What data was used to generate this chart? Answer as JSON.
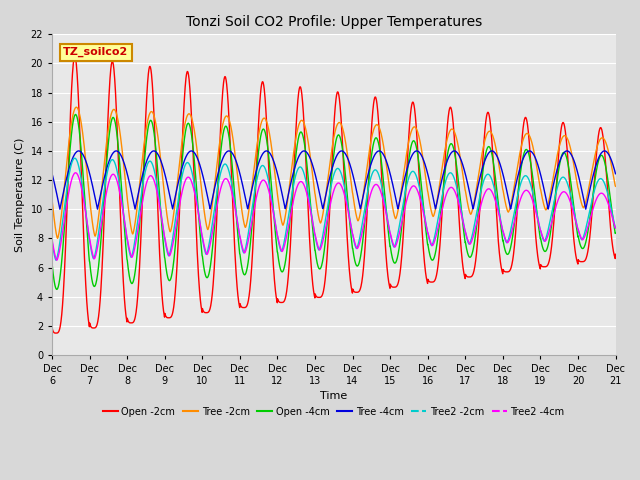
{
  "title": "Tonzi Soil CO2 Profile: Upper Temperatures",
  "xlabel": "Time",
  "ylabel": "Soil Temperature (C)",
  "ylim": [
    0,
    22
  ],
  "yticks": [
    0,
    2,
    4,
    6,
    8,
    10,
    12,
    14,
    16,
    18,
    20,
    22
  ],
  "num_days": 15,
  "xtick_labels": [
    "Dec 6",
    "Dec 7",
    "Dec 8",
    "Dec 9",
    "Dec 10",
    "Dec 11",
    "Dec 12",
    "Dec 13",
    "Dec 14",
    "Dec 15",
    "Dec 16",
    "Dec 17",
    "Dec 18",
    "Dec 19",
    "Dec 20",
    "Dec 21"
  ],
  "series": [
    {
      "label": "Open -2cm",
      "color": "#FF0000",
      "mid": 11.0,
      "amp": 9.5,
      "amp_decay_per_day": 0.35,
      "mid_decay_per_day": 0.0,
      "peak_hour": 14.5,
      "sharpness": 3.5
    },
    {
      "label": "Tree -2cm",
      "color": "#FF8C00",
      "mid": 12.5,
      "amp": 4.5,
      "amp_decay_per_day": 0.15,
      "mid_decay_per_day": 0.0,
      "peak_hour": 15.5,
      "sharpness": 1.5
    },
    {
      "label": "Open -4cm",
      "color": "#00CC00",
      "mid": 10.5,
      "amp": 6.0,
      "amp_decay_per_day": 0.2,
      "mid_decay_per_day": 0.0,
      "peak_hour": 15.0,
      "sharpness": 2.0
    },
    {
      "label": "Tree -4cm",
      "color": "#0000DD",
      "mid": 12.0,
      "amp": 2.0,
      "amp_decay_per_day": 0.0,
      "mid_decay_per_day": 0.0,
      "peak_hour": 17.0,
      "sharpness": 1.0
    },
    {
      "label": "Tree2 -2cm",
      "color": "#00CCCC",
      "mid": 10.0,
      "amp": 3.5,
      "amp_decay_per_day": 0.1,
      "mid_decay_per_day": 0.0,
      "peak_hour": 14.5,
      "sharpness": 1.5
    },
    {
      "label": "Tree2 -4cm",
      "color": "#FF00FF",
      "mid": 9.5,
      "amp": 3.0,
      "amp_decay_per_day": 0.1,
      "mid_decay_per_day": 0.0,
      "peak_hour": 15.0,
      "sharpness": 1.5
    }
  ],
  "bg_color": "#D8D8D8",
  "plot_bg_color": "#E8E8E8",
  "grid_color": "#FFFFFF",
  "annotation_text": "TZ_soilco2",
  "annotation_bg": "#FFFF99",
  "annotation_border": "#CC8800"
}
